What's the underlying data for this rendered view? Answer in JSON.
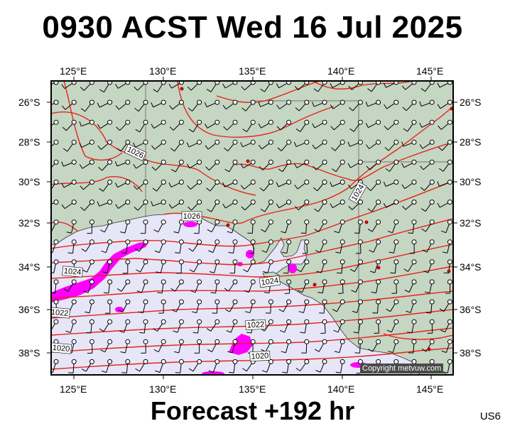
{
  "header": {
    "title": "0930 ACST Wed 16 Jul 2025"
  },
  "footer": {
    "forecast": "Forecast +192 hr",
    "code": "US6"
  },
  "map": {
    "lon_labels": [
      "125°E",
      "130°E",
      "135°E",
      "140°E",
      "145°E"
    ],
    "lat_labels": [
      "26°S",
      "28°S",
      "30°S",
      "32°S",
      "34°S",
      "36°S",
      "38°S"
    ],
    "isobar_labels": [
      "1026",
      "1026",
      "1024",
      "1024",
      "1024",
      "1022",
      "1022",
      "1020",
      "1020"
    ],
    "copyright": "Copyright metvuw.com",
    "colors": {
      "land": "#c5d6c2",
      "sea": "#e6e6f8",
      "isobar": "#e8241c",
      "rain": "#ff00ff",
      "frame": "#000000"
    }
  }
}
